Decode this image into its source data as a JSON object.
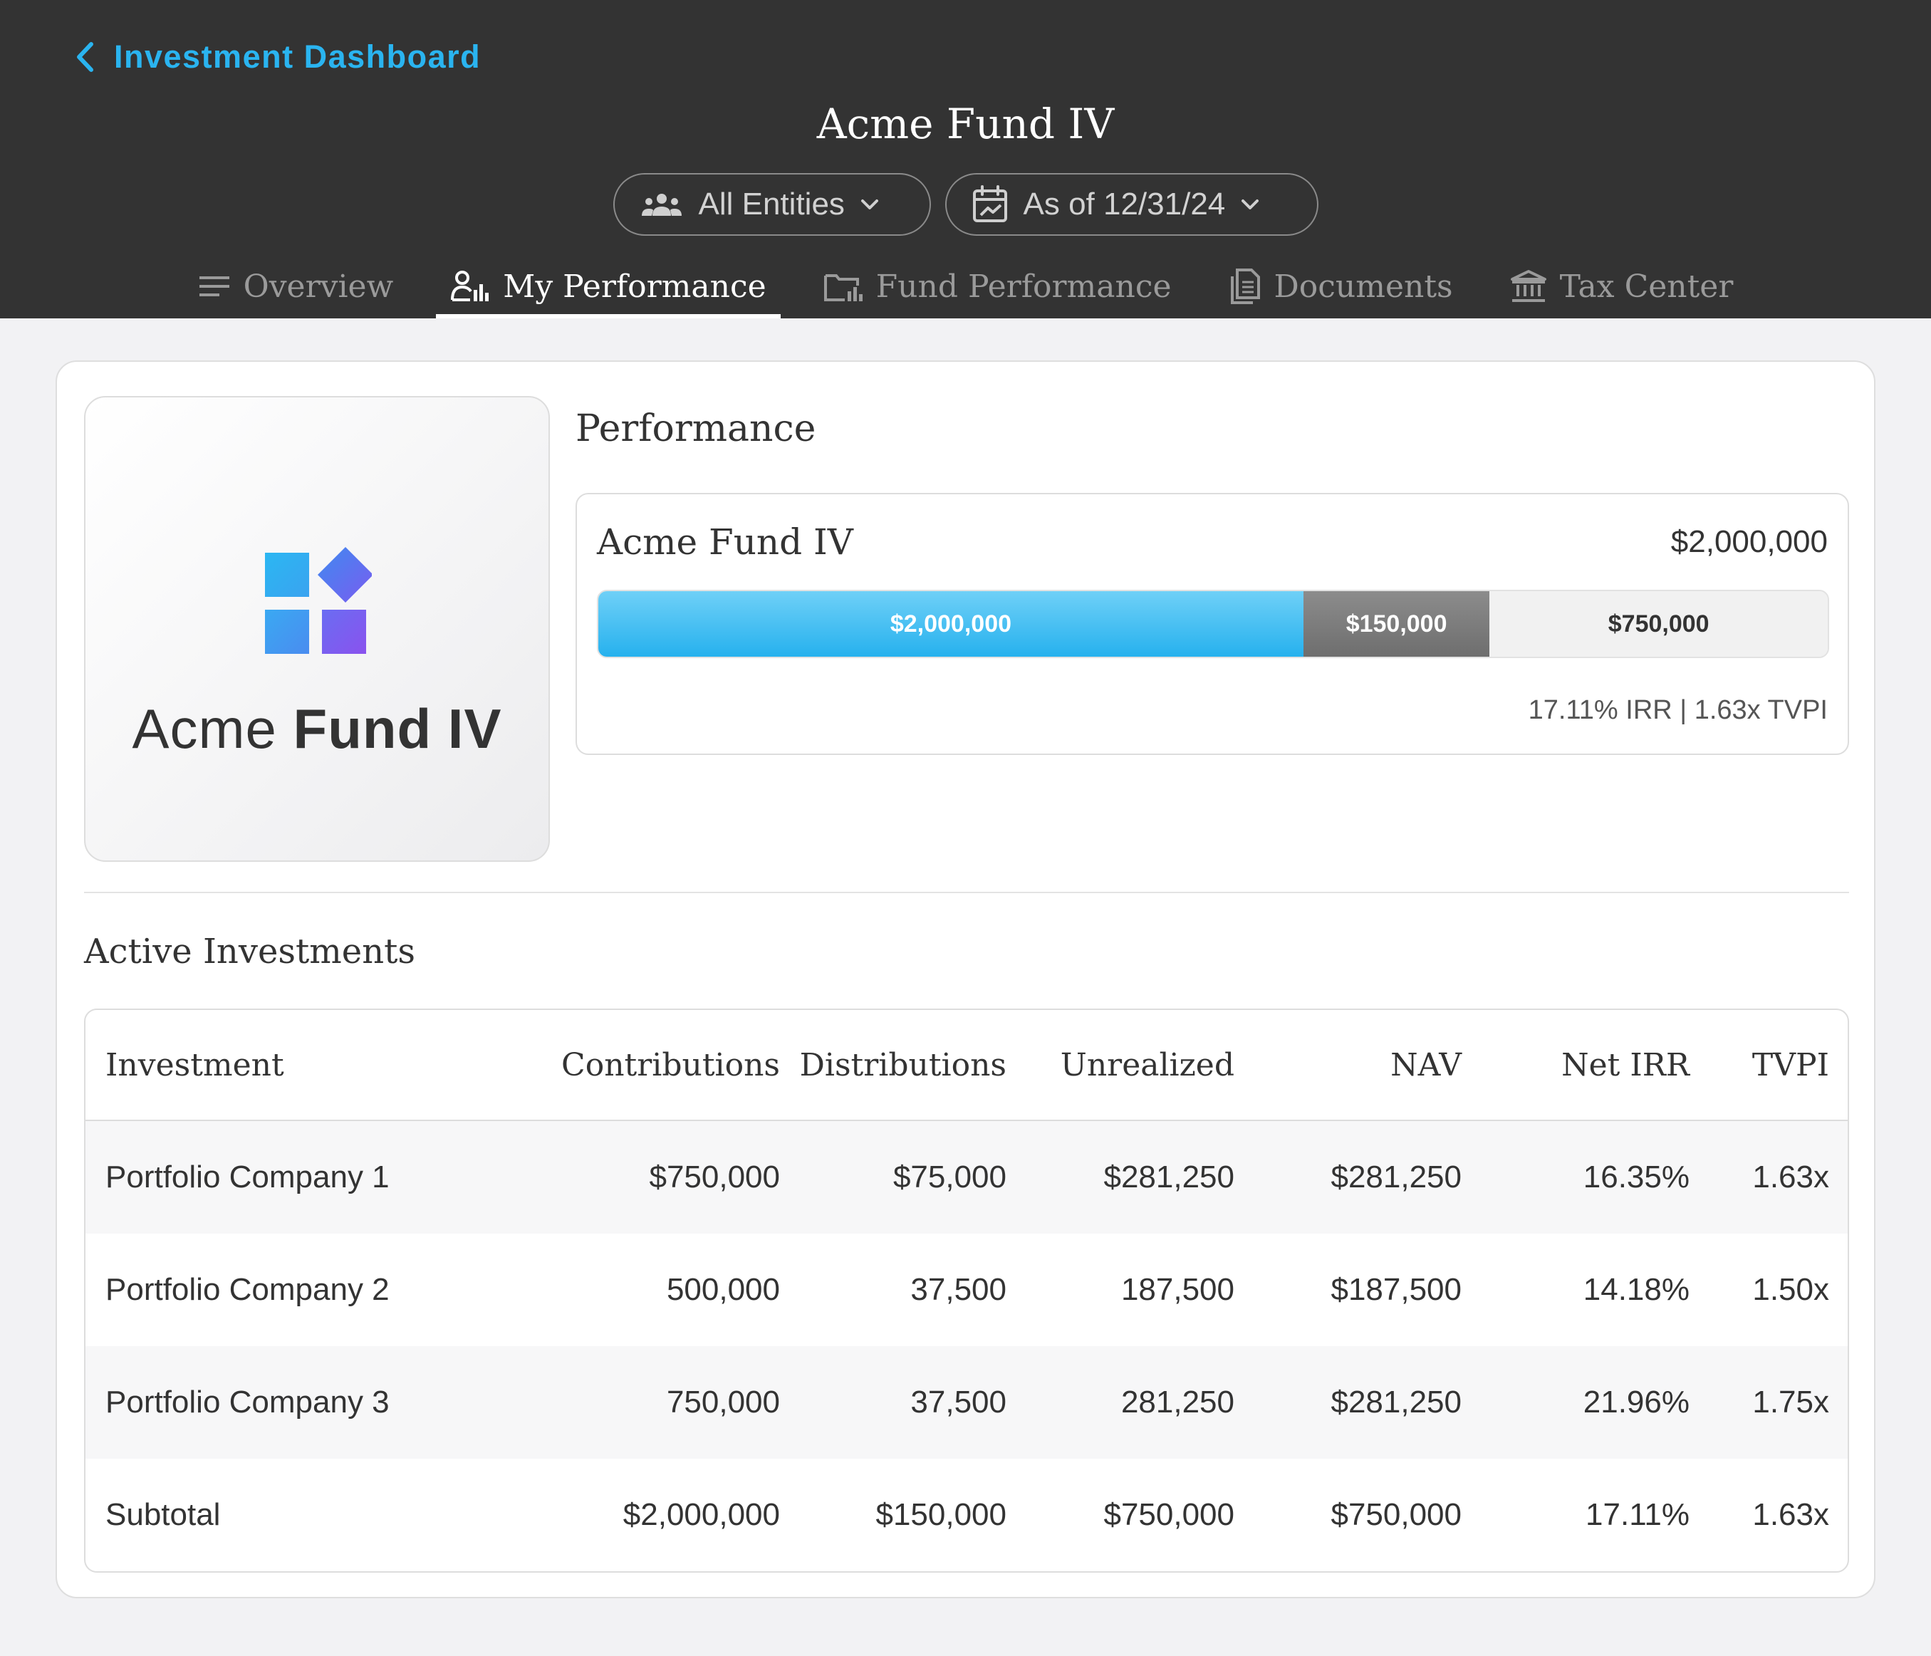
{
  "header": {
    "back_label": "Investment Dashboard",
    "fund_title": "Acme Fund IV",
    "filters": {
      "entities": "All Entities",
      "as_of": "As of 12/31/24"
    },
    "tabs": [
      {
        "label": "Overview",
        "icon": "menu-lines-icon",
        "active": false
      },
      {
        "label": "My Performance",
        "icon": "person-chart-icon",
        "active": true
      },
      {
        "label": "Fund Performance",
        "icon": "folder-chart-icon",
        "active": false
      },
      {
        "label": "Documents",
        "icon": "documents-icon",
        "active": false
      },
      {
        "label": "Tax Center",
        "icon": "bank-icon",
        "active": false
      }
    ]
  },
  "logo": {
    "word_regular": "Acme ",
    "word_bold": "Fund IV"
  },
  "performance": {
    "heading": "Performance",
    "fund_name": "Acme Fund IV",
    "fund_amount": "$2,000,000",
    "bar": {
      "contributions": {
        "label": "$2,000,000",
        "fraction": 0.5735
      },
      "distributions": {
        "label": "$150,000",
        "fraction": 0.1515
      },
      "unrealized": {
        "label": "$750,000",
        "fraction": 0.275
      }
    },
    "metrics": "17.11% IRR | 1.63x TVPI"
  },
  "active_investments": {
    "heading": "Active Investments",
    "columns": [
      "Investment",
      "Contributions",
      "Distributions",
      "Unrealized",
      "NAV",
      "Net IRR",
      "TVPI"
    ],
    "rows": [
      [
        "Portfolio Company 1",
        "$750,000",
        "$75,000",
        "$281,250",
        "$281,250",
        "16.35%",
        "1.63x"
      ],
      [
        "Portfolio Company 2",
        "500,000",
        "37,500",
        "187,500",
        "$187,500",
        "14.18%",
        "1.50x"
      ],
      [
        "Portfolio Company 3",
        "750,000",
        "37,500",
        "281,250",
        "$281,250",
        "21.96%",
        "1.75x"
      ],
      [
        "Subtotal",
        "$2,000,000",
        "$150,000",
        "$750,000",
        "$750,000",
        "17.11%",
        "1.63x"
      ]
    ]
  },
  "colors": {
    "header_bg": "#333333",
    "accent": "#2ab4f0",
    "distribution_gray": "#7a7a7a",
    "page_bg": "#f2f2f4"
  }
}
